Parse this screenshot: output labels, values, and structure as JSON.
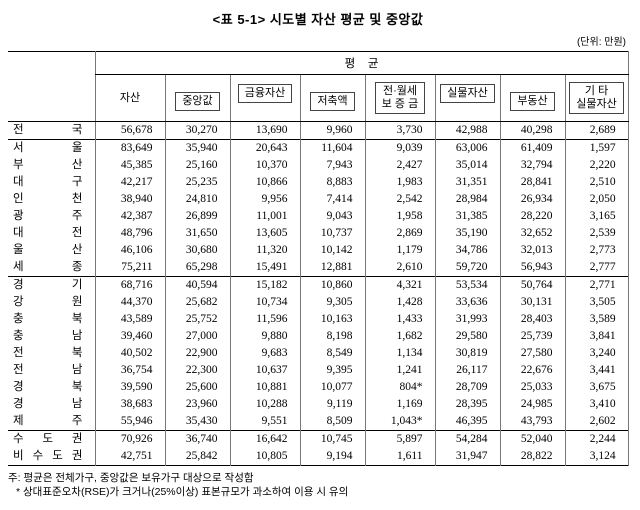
{
  "title": "<표 5-1> 시도별 자산 평균 및 중앙값",
  "unit_note": "(단위: 만원)",
  "table": {
    "group_header": "평    균",
    "columns": [
      "자산",
      "중앙값",
      "금융자산",
      "저축액",
      "전·월세\n보 증 금",
      "실물자산",
      "부동산",
      "기 타\n실물자산"
    ],
    "groups": [
      {
        "rows": [
          {
            "label": "전 국",
            "values": [
              "56,678",
              "30,270",
              "13,690",
              "9,960",
              "3,730",
              "42,988",
              "40,298",
              "2,689"
            ]
          }
        ]
      },
      {
        "rows": [
          {
            "label": "서 울",
            "values": [
              "83,649",
              "35,940",
              "20,643",
              "11,604",
              "9,039",
              "63,006",
              "61,409",
              "1,597"
            ]
          },
          {
            "label": "부 산",
            "values": [
              "45,385",
              "25,160",
              "10,370",
              "7,943",
              "2,427",
              "35,014",
              "32,794",
              "2,220"
            ]
          },
          {
            "label": "대 구",
            "values": [
              "42,217",
              "25,235",
              "10,866",
              "8,883",
              "1,983",
              "31,351",
              "28,841",
              "2,510"
            ]
          },
          {
            "label": "인 천",
            "values": [
              "38,940",
              "24,810",
              "9,956",
              "7,414",
              "2,542",
              "28,984",
              "26,934",
              "2,050"
            ]
          },
          {
            "label": "광 주",
            "values": [
              "42,387",
              "26,899",
              "11,001",
              "9,043",
              "1,958",
              "31,385",
              "28,220",
              "3,165"
            ]
          },
          {
            "label": "대 전",
            "values": [
              "48,796",
              "31,650",
              "13,605",
              "10,737",
              "2,869",
              "35,190",
              "32,652",
              "2,539"
            ]
          },
          {
            "label": "울 산",
            "values": [
              "46,106",
              "30,680",
              "11,320",
              "10,142",
              "1,179",
              "34,786",
              "32,013",
              "2,773"
            ]
          },
          {
            "label": "세 종",
            "values": [
              "75,211",
              "65,298",
              "15,491",
              "12,881",
              "2,610",
              "59,720",
              "56,943",
              "2,777"
            ]
          }
        ]
      },
      {
        "rows": [
          {
            "label": "경 기",
            "values": [
              "68,716",
              "40,594",
              "15,182",
              "10,860",
              "4,321",
              "53,534",
              "50,764",
              "2,771"
            ]
          },
          {
            "label": "강 원",
            "values": [
              "44,370",
              "25,682",
              "10,734",
              "9,305",
              "1,428",
              "33,636",
              "30,131",
              "3,505"
            ]
          },
          {
            "label": "충 북",
            "values": [
              "43,589",
              "25,752",
              "11,596",
              "10,163",
              "1,433",
              "31,993",
              "28,403",
              "3,589"
            ]
          },
          {
            "label": "충 남",
            "values": [
              "39,460",
              "27,000",
              "9,880",
              "8,198",
              "1,682",
              "29,580",
              "25,739",
              "3,841"
            ]
          },
          {
            "label": "전 북",
            "values": [
              "40,502",
              "22,900",
              "9,683",
              "8,549",
              "1,134",
              "30,819",
              "27,580",
              "3,240"
            ]
          },
          {
            "label": "전 남",
            "values": [
              "36,754",
              "22,300",
              "10,637",
              "9,395",
              "1,241",
              "26,117",
              "22,676",
              "3,441"
            ]
          },
          {
            "label": "경 북",
            "values": [
              "39,590",
              "25,600",
              "10,881",
              "10,077",
              "804*",
              "28,709",
              "25,033",
              "3,675"
            ]
          },
          {
            "label": "경 남",
            "values": [
              "38,683",
              "23,960",
              "10,288",
              "9,119",
              "1,169",
              "28,395",
              "24,985",
              "3,410"
            ]
          },
          {
            "label": "제 주",
            "values": [
              "55,946",
              "35,430",
              "9,551",
              "8,509",
              "1,043*",
              "46,395",
              "43,793",
              "2,602"
            ]
          }
        ]
      },
      {
        "rows": [
          {
            "label": "수 도 권",
            "values": [
              "70,926",
              "36,740",
              "16,642",
              "10,745",
              "5,897",
              "54,284",
              "52,040",
              "2,244"
            ]
          },
          {
            "label": "비 수 도 권",
            "values": [
              "42,751",
              "25,842",
              "10,805",
              "9,194",
              "1,611",
              "31,947",
              "28,822",
              "3,124"
            ]
          }
        ]
      }
    ]
  },
  "notes": [
    "주: 평균은 전체가구, 중앙값은 보유가구 대상으로 작성함",
    "* 상대표준오차(RSE)가 크거나(25%이상) 표본규모가 과소하여 이용 시 유의"
  ]
}
